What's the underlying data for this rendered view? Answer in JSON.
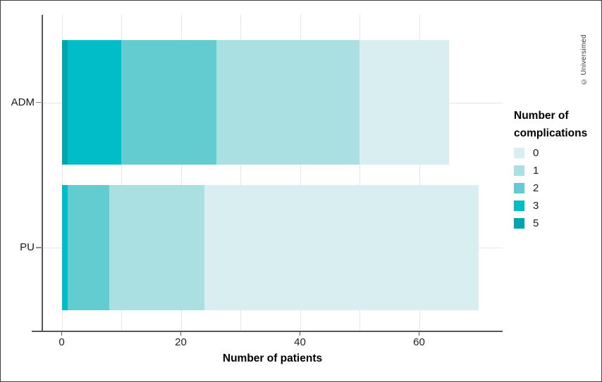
{
  "copyright": "© Universimed",
  "chart_data": {
    "type": "bar",
    "subtype": "horizontal_stacked",
    "title": "",
    "xlabel": "Number of patients",
    "ylabel": "",
    "legend_title": "Number of complications",
    "legend_position": "right",
    "grid": true,
    "categories": [
      "ADM",
      "PU"
    ],
    "series": [
      {
        "name": "0",
        "color": "#d8eef0",
        "values": [
          15,
          46
        ]
      },
      {
        "name": "1",
        "color": "#abe0e3",
        "values": [
          24,
          16
        ]
      },
      {
        "name": "2",
        "color": "#62ccd1",
        "values": [
          16,
          7
        ]
      },
      {
        "name": "3",
        "color": "#00bdc7",
        "values": [
          9,
          1
        ]
      },
      {
        "name": "5",
        "color": "#00a5ae",
        "values": [
          1,
          0
        ]
      }
    ],
    "segment_order_left_to_right": [
      "5",
      "3",
      "2",
      "1",
      "0"
    ],
    "totals": [
      65,
      70
    ],
    "x_ticks": [
      0,
      20,
      40,
      60
    ],
    "x_gridline_step": 10,
    "xlim": [
      0,
      74
    ]
  }
}
